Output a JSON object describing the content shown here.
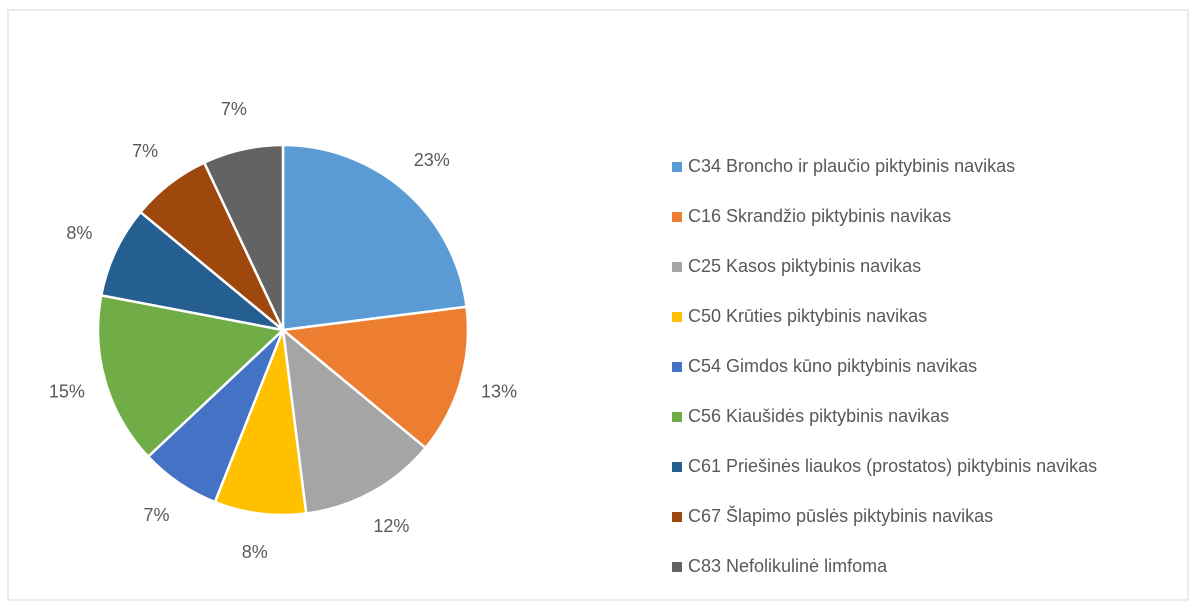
{
  "chart_data": {
    "type": "pie",
    "categories": [
      "C34 Broncho ir plaučio piktybinis navikas",
      "C16 Skrandžio piktybinis navikas",
      "C25 Kasos piktybinis navikas",
      "C50 Krūties piktybinis navikas",
      "C54 Gimdos kūno piktybinis navikas",
      "C56 Kiaušidės piktybinis navikas",
      "C61 Priešinės liaukos (prostatos) piktybinis navikas",
      "C67 Šlapimo pūslės piktybinis navikas",
      "C83 Nefolikulinė limfoma"
    ],
    "values": [
      23,
      13,
      12,
      8,
      7,
      15,
      8,
      7,
      7
    ],
    "value_labels": [
      "23%",
      "13%",
      "12%",
      "8%",
      "7%",
      "15%",
      "8%",
      "7%",
      "7%"
    ],
    "colors": [
      "#5b9bd5",
      "#ed7d31",
      "#a5a5a5",
      "#ffc000",
      "#4472c4",
      "#70ad47",
      "#255e91",
      "#9e480e",
      "#636363"
    ],
    "legend": "right"
  }
}
